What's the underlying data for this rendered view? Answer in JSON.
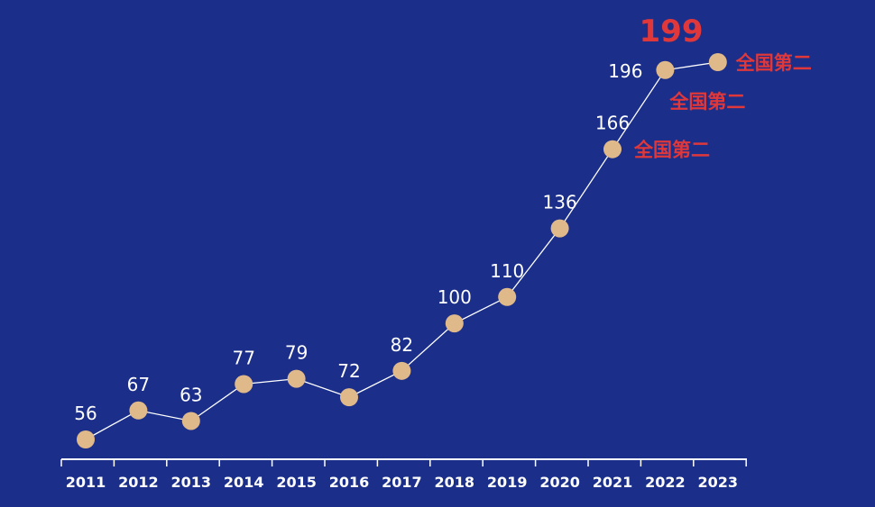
{
  "chart_data": {
    "type": "line",
    "x": [
      "2011",
      "2012",
      "2013",
      "2014",
      "2015",
      "2016",
      "2017",
      "2018",
      "2019",
      "2020",
      "2021",
      "2022",
      "2023"
    ],
    "series": [
      {
        "values": [
          56,
          67,
          63,
          77,
          79,
          72,
          82,
          100,
          110,
          136,
          166,
          196,
          199
        ]
      }
    ],
    "data_labels": [
      "56",
      "67",
      "63",
      "77",
      "79",
      "72",
      "82",
      "100",
      "110",
      "136",
      "166",
      "196",
      "199"
    ],
    "annotations": [
      {
        "x": "2021",
        "text": "全国第二"
      },
      {
        "x": "2022",
        "text": "全国第二"
      },
      {
        "x": "2023",
        "text": "全国第二"
      }
    ],
    "ylim": [
      40,
      210
    ],
    "grid": false,
    "colors": {
      "background": "#1b2f8a",
      "marker": "#e0b98a",
      "line": "#ffffff",
      "label": "#ffffff",
      "annotation": "#e0383a"
    }
  }
}
